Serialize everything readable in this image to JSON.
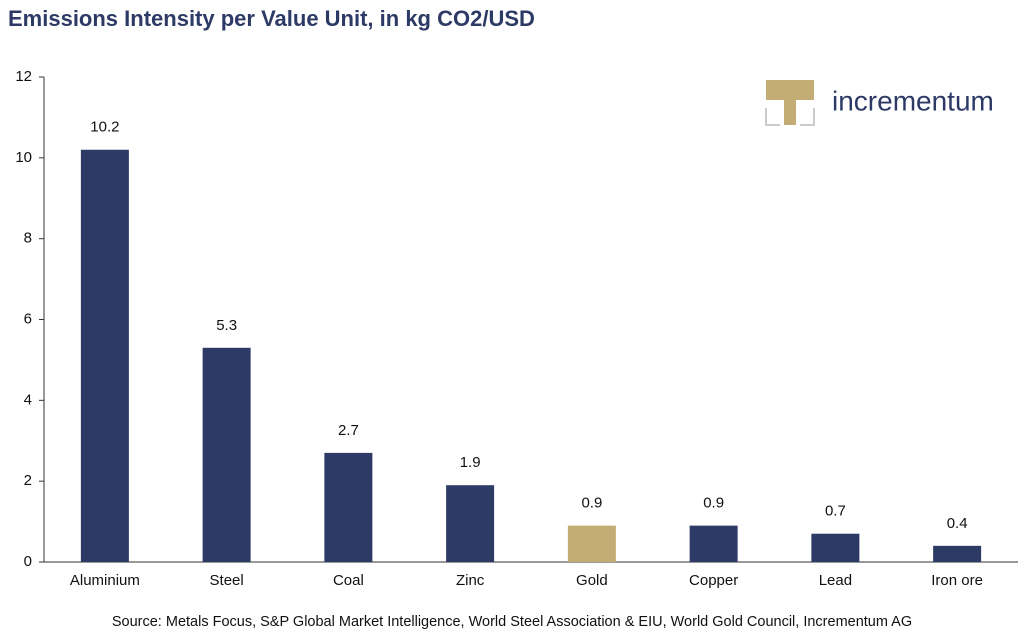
{
  "chart_data": {
    "type": "bar",
    "title": "Emissions Intensity per Value Unit, in kg CO2/USD",
    "categories": [
      "Aluminium",
      "Steel",
      "Coal",
      "Zinc",
      "Gold",
      "Copper",
      "Lead",
      "Iron ore"
    ],
    "values": [
      10.2,
      5.3,
      2.7,
      1.9,
      0.9,
      0.9,
      0.7,
      0.4
    ],
    "colors": [
      "#2e3a66",
      "#2e3a66",
      "#2e3a66",
      "#2e3a66",
      "#c4ad74",
      "#2e3a66",
      "#2e3a66",
      "#2e3a66"
    ],
    "ylim": [
      0,
      12
    ],
    "yticks": [
      0,
      2,
      4,
      6,
      8,
      10,
      12
    ],
    "grid": false,
    "source": "Source: Metals Focus, S&P Global Market Intelligence, World Steel Association & EIU, World Gold Council, Incrementum AG",
    "logo": "incrementum"
  }
}
